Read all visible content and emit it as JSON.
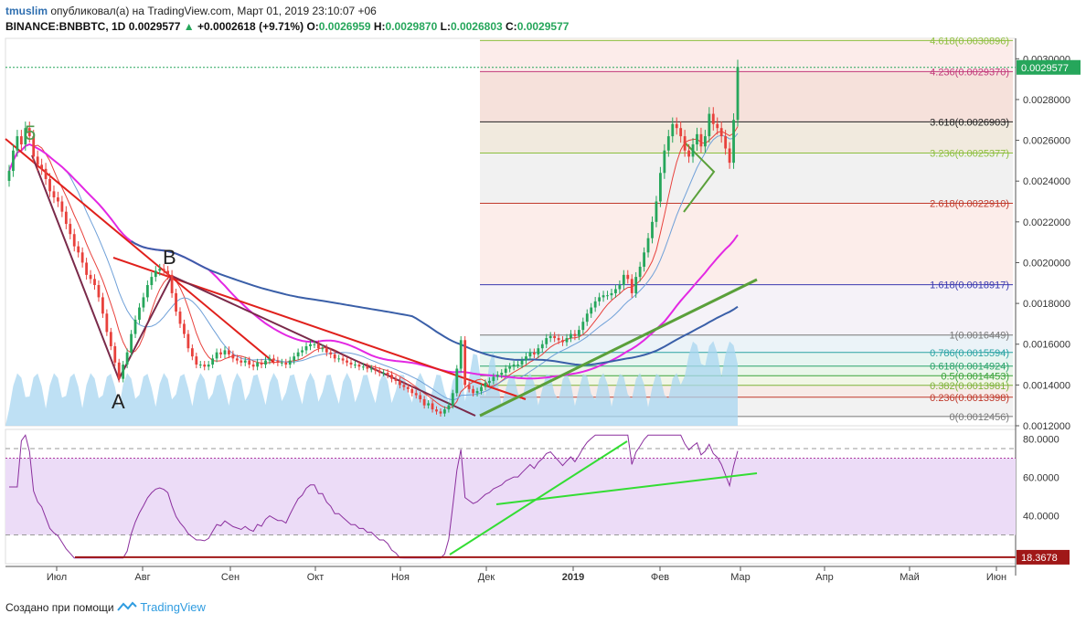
{
  "header": {
    "username": "tmuslim",
    "published_text": "опубликовал(а) на TradingView.com, Март 01, 2019 23:10:07 +06",
    "symbol": "BINANCE:BNBBTC, 1D",
    "last": "0.0029577",
    "change": "+0.0002618 (+9.71%)",
    "o_label": "O:",
    "o": "0.0026959",
    "h_label": "H:",
    "h": "0.0029870",
    "l_label": "L:",
    "l": "0.0026803",
    "c_label": "C:",
    "c": "0.0029577"
  },
  "footer": {
    "created_with": "Создано при помощи",
    "brand": "TradingView"
  },
  "colors": {
    "up": "#26a65b",
    "down": "#e8413c",
    "ma_blue": "#3a5fa8",
    "ma_magenta": "#e328e3",
    "rsi_fill": "#ecdcf7",
    "rsi_line": "#8b2f9e"
  },
  "annotations": {
    "wave5": "5",
    "pointA": "A",
    "pointB": "B"
  },
  "chart_data": [
    {
      "type": "candlestick",
      "title": "BINANCE:BNBBTC, 1D",
      "ylim": [
        0.0012,
        0.0031
      ],
      "y_ticks": [
        "0.0030000",
        "0.0028000",
        "0.0026000",
        "0.0024000",
        "0.0022000",
        "0.0020000",
        "0.0018000",
        "0.0016000",
        "0.0014000",
        "0.0012000"
      ],
      "y_tick_values": [
        0.003,
        0.0028,
        0.0026,
        0.0024,
        0.0022,
        0.002,
        0.0018,
        0.0016,
        0.0014,
        0.0012
      ],
      "x_ticks": [
        "Июл",
        "Авг",
        "Сен",
        "Окт",
        "Ноя",
        "Дек",
        "2019",
        "Фев",
        "Мар",
        "Апр",
        "Май",
        "Июн"
      ],
      "last_price_label": "0.0029577",
      "last_price": 0.0029577,
      "fib_levels": [
        {
          "label": "4.618(0.0030896)",
          "value": 0.0030896,
          "color": "#8cbf3f"
        },
        {
          "label": "4.236(0.0029370)",
          "value": 0.002937,
          "color": "#c2397a"
        },
        {
          "label": "3.618(0.0026903)",
          "value": 0.0026903,
          "color": "#222222"
        },
        {
          "label": "3.236(0.0025377)",
          "value": 0.0025377,
          "color": "#8cbf3f"
        },
        {
          "label": "2.618(0.0022910)",
          "value": 0.002291,
          "color": "#c0392b"
        },
        {
          "label": "1.618(0.0018917)",
          "value": 0.0018917,
          "color": "#3a3ab0"
        },
        {
          "label": "1(0.0016449)",
          "value": 0.0016449,
          "color": "#777777"
        },
        {
          "label": "0.786(0.0015594)",
          "value": 0.0015594,
          "color": "#2aa3a3"
        },
        {
          "label": "0.618(0.0014924)",
          "value": 0.0014924,
          "color": "#2aa36a"
        },
        {
          "label": "0.5(0.0014453)",
          "value": 0.0014453,
          "color": "#3aa33a"
        },
        {
          "label": "0.382(0.0013981)",
          "value": 0.0013981,
          "color": "#7fb33a"
        },
        {
          "label": "0.236(0.0013398)",
          "value": 0.0013398,
          "color": "#c0392b"
        },
        {
          "label": "0(0.0012456)",
          "value": 0.0012456,
          "color": "#777777"
        }
      ],
      "closes": [
        0.00245,
        0.00255,
        0.00262,
        0.00258,
        0.00266,
        0.00262,
        0.00252,
        0.00248,
        0.00246,
        0.00241,
        0.00235,
        0.00232,
        0.0023,
        0.00225,
        0.00219,
        0.00214,
        0.00208,
        0.00205,
        0.002,
        0.00194,
        0.00192,
        0.00189,
        0.00183,
        0.00175,
        0.00166,
        0.00159,
        0.00151,
        0.00143,
        0.0015,
        0.00156,
        0.00165,
        0.00172,
        0.00178,
        0.00183,
        0.00189,
        0.00193,
        0.00196,
        0.00197,
        0.00196,
        0.00194,
        0.00185,
        0.00176,
        0.0017,
        0.00165,
        0.00158,
        0.00154,
        0.0015,
        0.0015,
        0.00149,
        0.0015,
        0.00153,
        0.00156,
        0.00155,
        0.00157,
        0.00155,
        0.00153,
        0.00152,
        0.00151,
        0.00152,
        0.0015,
        0.00149,
        0.00151,
        0.0015,
        0.00152,
        0.00153,
        0.00152,
        0.00151,
        0.00151,
        0.0015,
        0.00152,
        0.00154,
        0.00156,
        0.00157,
        0.00159,
        0.0016,
        0.0016,
        0.00158,
        0.00158,
        0.00156,
        0.00155,
        0.00153,
        0.00153,
        0.00152,
        0.00151,
        0.0015,
        0.0015,
        0.00149,
        0.00149,
        0.00148,
        0.00148,
        0.00147,
        0.00146,
        0.00146,
        0.00145,
        0.00143,
        0.00142,
        0.0014,
        0.00139,
        0.00138,
        0.00136,
        0.00135,
        0.00133,
        0.0013,
        0.00131,
        0.00128,
        0.00127,
        0.00126,
        0.00128,
        0.0013,
        0.00136,
        0.00148,
        0.00162,
        0.0014,
        0.00138,
        0.00136,
        0.00137,
        0.00139,
        0.00141,
        0.00142,
        0.00144,
        0.00145,
        0.00146,
        0.00148,
        0.00149,
        0.0015,
        0.0015,
        0.00152,
        0.00154,
        0.00156,
        0.00155,
        0.00158,
        0.0016,
        0.00163,
        0.00164,
        0.00163,
        0.00162,
        0.00161,
        0.00163,
        0.00165,
        0.00164,
        0.00167,
        0.00171,
        0.00175,
        0.00178,
        0.00181,
        0.00183,
        0.00184,
        0.00184,
        0.00185,
        0.00187,
        0.00189,
        0.00194,
        0.00192,
        0.00185,
        0.00193,
        0.00198,
        0.00205,
        0.00212,
        0.0022,
        0.0023,
        0.00244,
        0.00255,
        0.00262,
        0.00268,
        0.00266,
        0.00262,
        0.00255,
        0.00252,
        0.00258,
        0.00263,
        0.00257,
        0.00262,
        0.00273,
        0.00268,
        0.00266,
        0.00262,
        0.00256,
        0.00249,
        0.0027,
        0.00296
      ],
      "rsi": {
        "ylim": [
          15,
          85
        ],
        "y_ticks": [
          "80.0000",
          "60.0000",
          "40.0000"
        ],
        "y_tick_values": [
          80,
          60,
          40
        ],
        "overbought": 70,
        "oversold": 30,
        "support_label": "18.3678",
        "support": 18.3678
      }
    }
  ]
}
